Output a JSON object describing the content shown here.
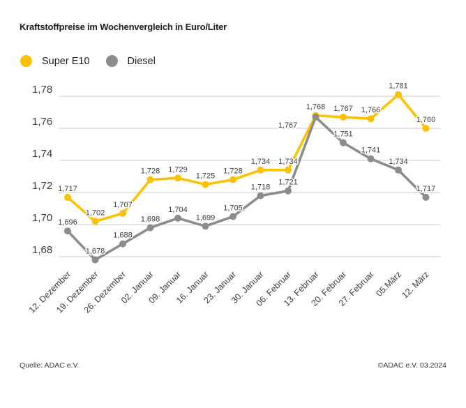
{
  "title": "Kraftstoffpreise im Wochenvergleich in Euro/Liter",
  "legend": {
    "items": [
      {
        "label": "Super E10",
        "color": "#fcc200"
      },
      {
        "label": "Diesel",
        "color": "#8c8c8c"
      }
    ]
  },
  "footer": {
    "source": "Quelle: ADAC e.V.",
    "copyright": "©ADAC e.V. 03.2024"
  },
  "chart_data": {
    "type": "line",
    "title": "Kraftstoffpreise im Wochenvergleich in Euro/Liter",
    "unit": "Euro/Liter",
    "grid": true,
    "legend_position": "top-left",
    "ylim": [
      1.668,
      1.79
    ],
    "yticks": {
      "values": [
        1.68,
        1.7,
        1.72,
        1.74,
        1.76,
        1.78
      ],
      "labels": [
        "1,68",
        "1,70",
        "1,72",
        "1,74",
        "1,76",
        "1,78"
      ]
    },
    "categories": [
      "12. Dezember",
      "19. Dezember",
      "26. Dezember",
      "02. Januar",
      "09. Januar",
      "16. Januar",
      "23. Januar",
      "30. Januar",
      "06. Februar",
      "13. Februar",
      "20. Februar",
      "27. Februar",
      "05.März",
      "12. März"
    ],
    "series": [
      {
        "name": "Super E10",
        "color": "#fcc200",
        "values": [
          1.717,
          1.702,
          1.707,
          1.728,
          1.729,
          1.725,
          1.728,
          1.734,
          1.734,
          1.768,
          1.767,
          1.766,
          1.781,
          1.76
        ],
        "labels": [
          "1,717",
          "1,702",
          "1,707",
          "1,728",
          "1,729",
          "1,725",
          "1,728",
          "1,734",
          "1,734",
          "1,768",
          "1,767",
          "1,766",
          "1,781",
          "1,760"
        ]
      },
      {
        "name": "Diesel",
        "color": "#8c8c8c",
        "values": [
          1.696,
          1.678,
          1.688,
          1.698,
          1.704,
          1.699,
          1.705,
          1.718,
          1.721,
          1.767,
          1.751,
          1.741,
          1.734,
          1.717
        ],
        "labels": [
          "1,696",
          "1,678",
          "1,688",
          "1,698",
          "1,704",
          "1,699",
          "1,705",
          "1,718",
          "1,721",
          "1,767",
          "1,751",
          "1,741",
          "1,734",
          "1,717"
        ]
      }
    ],
    "grid_color": "#c9c9c9"
  }
}
